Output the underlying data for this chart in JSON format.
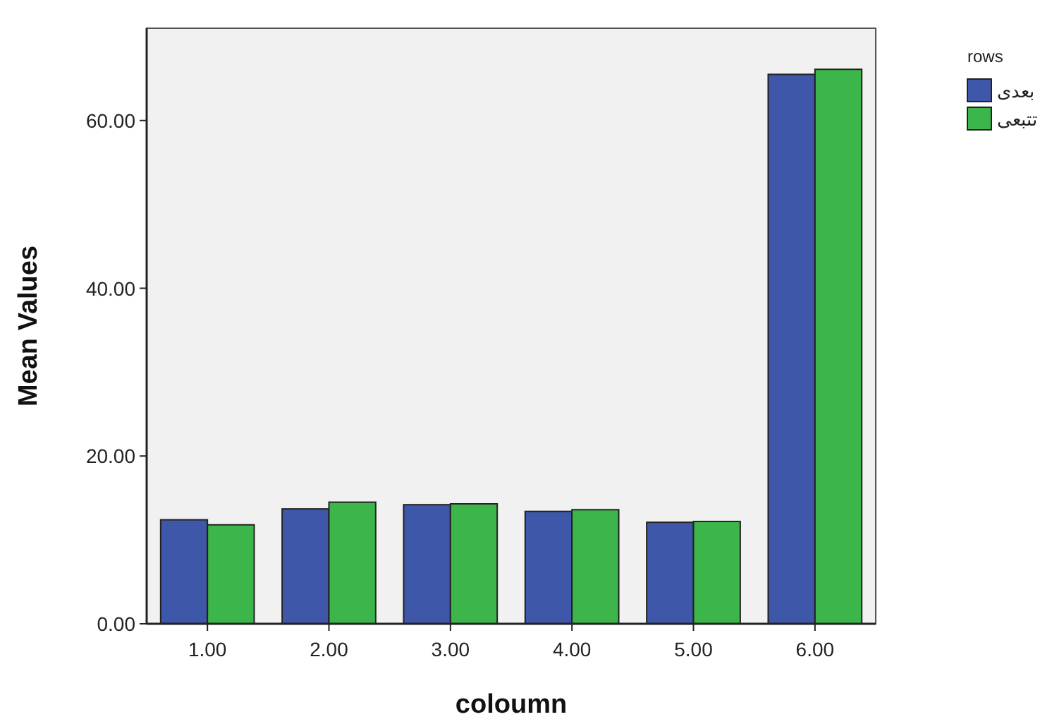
{
  "chart_data": {
    "type": "bar",
    "xlabel": "coloumn",
    "ylabel": "Mean Values",
    "legend_title": "rows",
    "legend": "top right",
    "grid": false,
    "categories": [
      "1.00",
      "2.00",
      "3.00",
      "4.00",
      "5.00",
      "6.00"
    ],
    "series": [
      {
        "name": "بعدی",
        "color": "#3f57a8",
        "values": [
          12.4,
          13.7,
          14.2,
          13.4,
          12.1,
          65.5
        ]
      },
      {
        "name": "تتبعی",
        "color": "#3cb64a",
        "values": [
          11.8,
          14.5,
          14.3,
          13.6,
          12.2,
          66.1
        ]
      }
    ],
    "ylim": [
      0,
      71
    ],
    "yticks": [
      {
        "value": 0,
        "label": "0.00"
      },
      {
        "value": 20,
        "label": "20.00"
      },
      {
        "value": 40,
        "label": "40.00"
      },
      {
        "value": 60,
        "label": "60.00"
      }
    ]
  }
}
